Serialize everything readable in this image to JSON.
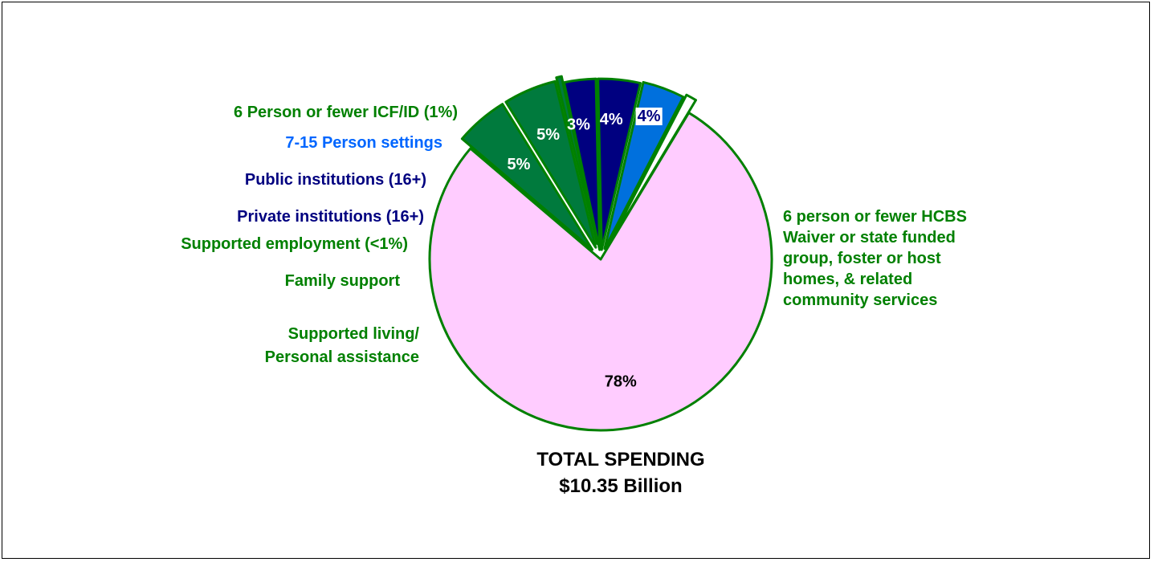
{
  "chart_data": {
    "type": "pie",
    "title": "",
    "total_label": "TOTAL SPENDING",
    "total_value": "$10.35 Billion",
    "slices": [
      {
        "label": "6 person or fewer HCBS Waiver or state funded group, foster or host homes, & related community services",
        "label_lines": [
          "6 person or fewer HCBS",
          "Waiver or state funded",
          "group, foster or host",
          "homes, & related",
          "community services"
        ],
        "value": 78,
        "value_label": "78%",
        "color": "#FFCCFF",
        "text_color": "#008000",
        "pct_color": "#000000"
      },
      {
        "label": "Supported living/ Personal assistance",
        "label_lines": [
          "Supported living/",
          "Personal assistance"
        ],
        "value": 5,
        "value_label": "5%",
        "color": "#007A3D",
        "text_color": "#008000",
        "pct_color": "#FFFFFF"
      },
      {
        "label": "Family support",
        "label_lines": [
          "Family support"
        ],
        "value": 5,
        "value_label": "5%",
        "color": "#007A3D",
        "text_color": "#008000",
        "pct_color": "#FFFFFF"
      },
      {
        "label": "Supported employment (<1%)",
        "label_lines": [
          "Supported employment (<1%)"
        ],
        "value": 0.5,
        "value_label": "",
        "color": "#007A3D",
        "text_color": "#008000",
        "pct_color": "#FFFFFF"
      },
      {
        "label": "Private institutions (16+)",
        "label_lines": [
          "Private institutions (16+)"
        ],
        "value": 3,
        "value_label": "3%",
        "color": "#000080",
        "text_color": "#000080",
        "pct_color": "#FFFFFF"
      },
      {
        "label": "Public institutions (16+)",
        "label_lines": [
          "Public institutions (16+)"
        ],
        "value": 4,
        "value_label": "4%",
        "color": "#000080",
        "text_color": "#000080",
        "pct_color": "#FFFFFF"
      },
      {
        "label": "7-15 Person settings",
        "label_lines": [
          "7-15 Person settings"
        ],
        "value": 4,
        "value_label": "4%",
        "color": "#0070DD",
        "text_color": "#0066FF",
        "pct_color": "#000080"
      },
      {
        "label": "6 Person or fewer ICF/ID (1%)",
        "label_lines": [
          "6 Person or fewer ICF/ID (1%)"
        ],
        "value": 1,
        "value_label": "",
        "color": "#FFFFFF",
        "text_color": "#008000",
        "pct_color": "#008000"
      }
    ]
  }
}
